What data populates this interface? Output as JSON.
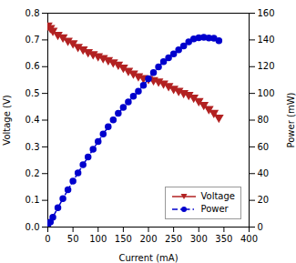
{
  "chart_data": {
    "type": "line",
    "xlabel": "Current (mA)",
    "ylabel": "Voltage (V)",
    "y2label": "Power (mW)",
    "x": [
      0,
      5,
      10,
      20,
      30,
      40,
      50,
      60,
      70,
      80,
      90,
      100,
      110,
      120,
      130,
      140,
      150,
      160,
      170,
      180,
      190,
      200,
      210,
      220,
      230,
      240,
      250,
      260,
      270,
      280,
      290,
      300,
      310,
      320,
      330,
      340
    ],
    "series": [
      {
        "name": "Voltage",
        "color": "#B22222",
        "marker": "triangle_down",
        "line_style": "solid",
        "values": [
          0.755,
          0.745,
          0.735,
          0.72,
          0.71,
          0.698,
          0.688,
          0.675,
          0.665,
          0.655,
          0.647,
          0.64,
          0.633,
          0.625,
          0.617,
          0.608,
          0.597,
          0.585,
          0.575,
          0.565,
          0.558,
          0.555,
          0.55,
          0.545,
          0.538,
          0.528,
          0.518,
          0.51,
          0.502,
          0.495,
          0.485,
          0.472,
          0.458,
          0.442,
          0.428,
          0.41
        ]
      },
      {
        "name": "Power",
        "color": "#0000CD",
        "marker": "circle",
        "line_style": "dashdot",
        "axis": "y2",
        "values": [
          0,
          3.7,
          7.4,
          14.4,
          21.3,
          27.9,
          34.4,
          40.5,
          46.6,
          52.4,
          58.2,
          64.0,
          69.6,
          75.0,
          80.2,
          85.1,
          89.6,
          93.6,
          97.8,
          101.7,
          106.0,
          111.0,
          115.5,
          119.9,
          123.7,
          126.7,
          129.5,
          132.6,
          135.5,
          138.6,
          140.7,
          141.6,
          142.0,
          141.4,
          141.2,
          139.4
        ]
      }
    ],
    "xlim": [
      0,
      400
    ],
    "xticks": [
      0,
      50,
      100,
      150,
      200,
      250,
      300,
      350,
      400
    ],
    "ylim": [
      0,
      0.8
    ],
    "yticks": [
      {
        "value": 0,
        "label": "0.0"
      },
      0.1,
      0.2,
      0.3,
      0.4,
      0.5,
      0.6,
      0.7,
      0.8
    ],
    "y2lim": [
      0,
      160
    ],
    "y2ticks": [
      0,
      20,
      40,
      60,
      80,
      100,
      120,
      140,
      160
    ],
    "legend": "lower right",
    "grid": false
  }
}
